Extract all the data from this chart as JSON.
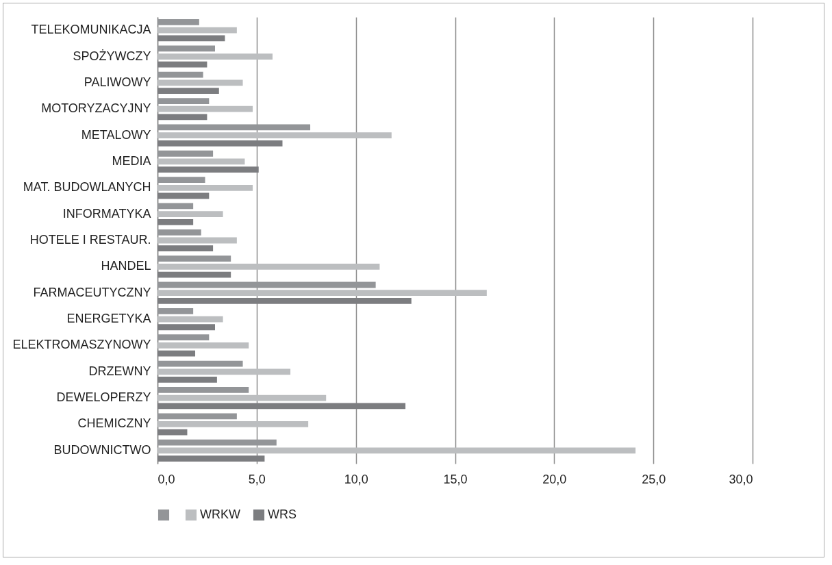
{
  "chart_data": {
    "type": "bar",
    "orientation": "horizontal",
    "categories": [
      "TELEKOMUNIKACJA",
      "SPOŻYWCZY",
      "PALIWOWY",
      "MOTORYZACYJNY",
      "METALOWY",
      "MEDIA",
      "MAT. BUDOWLANYCH",
      "INFORMATYKA",
      "HOTELE I RESTAUR.",
      "HANDEL ",
      "FARMACEUTYCZNY",
      "ENERGETYKA",
      "ELEKTROMASZYNOWY",
      "DRZEWNY",
      "DEWELOPERZY",
      "CHEMICZNY",
      "BUDOWNICTWO"
    ],
    "series": [
      {
        "color": "#939598",
        "values": [
          2.1,
          2.9,
          2.3,
          2.6,
          7.7,
          2.8,
          2.4,
          1.8,
          2.2,
          3.7,
          11.0,
          1.8,
          2.6,
          4.3,
          4.6,
          4.0,
          6.0
        ]
      },
      {
        "name": "WRKW",
        "color": "#bcbec0",
        "values": [
          4.0,
          5.8,
          4.3,
          4.8,
          11.8,
          4.4,
          4.8,
          3.3,
          4.0,
          11.2,
          16.6,
          3.3,
          4.6,
          6.7,
          8.5,
          7.6,
          24.1
        ]
      },
      {
        "name": "WRS",
        "color": "#7c7d80",
        "values": [
          3.4,
          2.5,
          3.1,
          2.5,
          6.3,
          5.1,
          2.6,
          1.8,
          2.8,
          3.7,
          12.8,
          2.9,
          1.9,
          3.0,
          12.5,
          1.5,
          5.4
        ]
      }
    ],
    "xlim": [
      0,
      30
    ],
    "xticks": [
      {
        "value": 0,
        "label": "0,0"
      },
      {
        "value": 5,
        "label": "5,0"
      },
      {
        "value": 10,
        "label": "10,0"
      },
      {
        "value": 15,
        "label": "15,0"
      },
      {
        "value": 20,
        "label": "20,0"
      },
      {
        "value": 25,
        "label": "25,0"
      },
      {
        "value": 30,
        "label": "30,0"
      }
    ],
    "grid": "x",
    "legend": "bottom"
  }
}
